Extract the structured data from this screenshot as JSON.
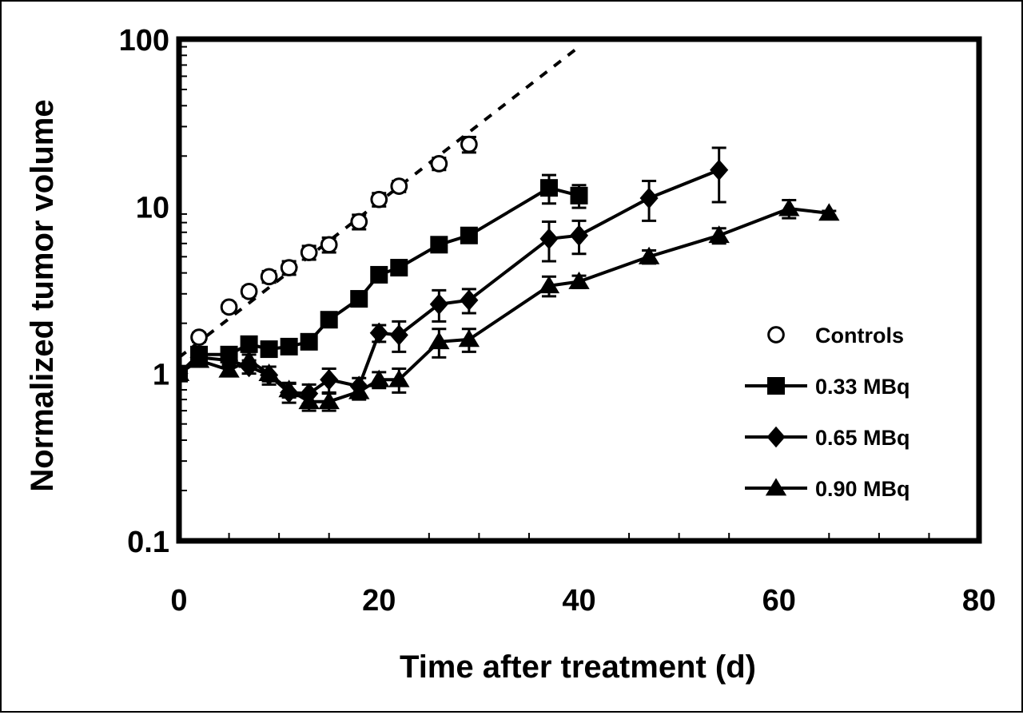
{
  "chart_data": {
    "type": "line",
    "title": "",
    "xlabel": "Time after treatment (d)",
    "ylabel": "Normalized tumor volume",
    "x_axis": {
      "min": 0,
      "max": 80,
      "major_ticks": [
        0,
        20,
        40,
        60,
        80
      ],
      "tick_labels": [
        "0",
        "20",
        "40",
        "60",
        "80"
      ]
    },
    "y_axis": {
      "scale": "log",
      "min": 0.1,
      "max": 100,
      "major_ticks": [
        0.1,
        1,
        10,
        100
      ],
      "tick_labels": [
        "0.1",
        "1",
        "10",
        "100"
      ]
    },
    "grid": false,
    "legend_position": "right",
    "series": [
      {
        "name": "Controls",
        "marker": "open-circle",
        "line": "none",
        "fit_line": {
          "style": "dashed",
          "from": [
            0,
            1.25
          ],
          "to": [
            40,
            90
          ]
        },
        "points": [
          {
            "x": 0,
            "y": 1.0,
            "err": 0.05
          },
          {
            "x": 2,
            "y": 1.65,
            "err": 0.1
          },
          {
            "x": 5,
            "y": 2.5,
            "err": 0.15
          },
          {
            "x": 7,
            "y": 3.1,
            "err": 0.2
          },
          {
            "x": 9,
            "y": 3.8,
            "err": 0.3
          },
          {
            "x": 11,
            "y": 4.3,
            "err": 0.4
          },
          {
            "x": 13,
            "y": 5.3,
            "err": 0.5
          },
          {
            "x": 15,
            "y": 5.9,
            "err": 0.6
          },
          {
            "x": 18,
            "y": 8.1,
            "err": 0.8
          },
          {
            "x": 20,
            "y": 11.0,
            "err": 1.0
          },
          {
            "x": 22,
            "y": 13.2,
            "err": 1.0
          },
          {
            "x": 26,
            "y": 18.0,
            "err": 1.5
          },
          {
            "x": 29,
            "y": 23.5,
            "err": 2.5
          }
        ]
      },
      {
        "name": "0.33 MBq",
        "marker": "filled-square",
        "line": "solid",
        "points": [
          {
            "x": 0,
            "y": 1.0,
            "err": 0.05
          },
          {
            "x": 2,
            "y": 1.3,
            "err": 0.1
          },
          {
            "x": 5,
            "y": 1.3,
            "err": 0.1
          },
          {
            "x": 7,
            "y": 1.5,
            "err": 0.15
          },
          {
            "x": 9,
            "y": 1.4,
            "err": 0.1
          },
          {
            "x": 11,
            "y": 1.45,
            "err": 0.1
          },
          {
            "x": 13,
            "y": 1.55,
            "err": 0.1
          },
          {
            "x": 15,
            "y": 2.1,
            "err": 0.15
          },
          {
            "x": 18,
            "y": 2.8,
            "err": 0.2
          },
          {
            "x": 20,
            "y": 3.9,
            "err": 0.3
          },
          {
            "x": 22,
            "y": 4.3,
            "err": 0.3
          },
          {
            "x": 26,
            "y": 5.9,
            "err": 0.4
          },
          {
            "x": 29,
            "y": 6.7,
            "err": 0.4
          },
          {
            "x": 37,
            "y": 12.9,
            "err": 2.5
          },
          {
            "x": 40,
            "y": 11.6,
            "err": 1.8
          }
        ]
      },
      {
        "name": "0.65 MBq",
        "marker": "filled-diamond",
        "line": "solid",
        "points": [
          {
            "x": 0,
            "y": 1.0,
            "err": 0.05
          },
          {
            "x": 2,
            "y": 1.25,
            "err": 0.1
          },
          {
            "x": 5,
            "y": 1.2,
            "err": 0.1
          },
          {
            "x": 7,
            "y": 1.1,
            "err": 0.1
          },
          {
            "x": 9,
            "y": 0.98,
            "err": 0.12
          },
          {
            "x": 11,
            "y": 0.77,
            "err": 0.1
          },
          {
            "x": 13,
            "y": 0.76,
            "err": 0.1
          },
          {
            "x": 15,
            "y": 0.92,
            "err": 0.15
          },
          {
            "x": 18,
            "y": 0.84,
            "err": 0.1
          },
          {
            "x": 20,
            "y": 1.75,
            "err": 0.2
          },
          {
            "x": 22,
            "y": 1.7,
            "err": 0.35
          },
          {
            "x": 26,
            "y": 2.6,
            "err": 0.55
          },
          {
            "x": 29,
            "y": 2.75,
            "err": 0.45
          },
          {
            "x": 37,
            "y": 6.4,
            "err": 1.7
          },
          {
            "x": 40,
            "y": 6.7,
            "err": 1.5
          },
          {
            "x": 47,
            "y": 11.2,
            "err": 3.0
          },
          {
            "x": 54,
            "y": 16.5,
            "err": 5.9
          }
        ]
      },
      {
        "name": "0.90 MBq",
        "marker": "filled-triangle",
        "line": "solid",
        "points": [
          {
            "x": 0,
            "y": 1.0,
            "err": 0.05
          },
          {
            "x": 2,
            "y": 1.2,
            "err": 0.1
          },
          {
            "x": 5,
            "y": 1.05,
            "err": 0.08
          },
          {
            "x": 7,
            "y": 1.2,
            "err": 0.1
          },
          {
            "x": 9,
            "y": 1.0,
            "err": 0.1
          },
          {
            "x": 11,
            "y": 0.8,
            "err": 0.08
          },
          {
            "x": 13,
            "y": 0.68,
            "err": 0.08
          },
          {
            "x": 15,
            "y": 0.68,
            "err": 0.08
          },
          {
            "x": 18,
            "y": 0.78,
            "err": 0.08
          },
          {
            "x": 20,
            "y": 0.92,
            "err": 0.1
          },
          {
            "x": 22,
            "y": 0.92,
            "err": 0.15
          },
          {
            "x": 26,
            "y": 1.55,
            "err": 0.3
          },
          {
            "x": 29,
            "y": 1.6,
            "err": 0.25
          },
          {
            "x": 37,
            "y": 3.35,
            "err": 0.45
          },
          {
            "x": 40,
            "y": 3.55,
            "err": 0.3
          },
          {
            "x": 47,
            "y": 5.0,
            "err": 0.45
          },
          {
            "x": 54,
            "y": 6.7,
            "err": 0.7
          },
          {
            "x": 61,
            "y": 9.7,
            "err": 1.2
          },
          {
            "x": 65,
            "y": 9.1,
            "err": 0.3
          }
        ]
      }
    ]
  }
}
